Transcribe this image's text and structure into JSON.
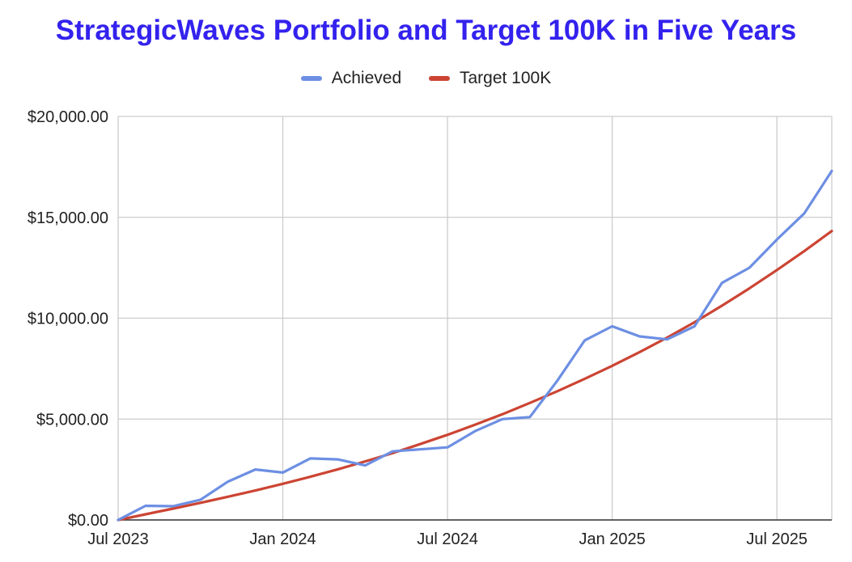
{
  "chart_data": {
    "type": "line",
    "title": "StrategicWaves Portfolio and Target 100K in Five Years",
    "xlabel": "",
    "ylabel": "",
    "ylim": [
      0,
      20000
    ],
    "xlim": [
      0,
      26
    ],
    "x_ticks": [
      {
        "x": 0,
        "label": "Jul 2023"
      },
      {
        "x": 6,
        "label": "Jan 2024"
      },
      {
        "x": 12,
        "label": "Jul 2024"
      },
      {
        "x": 18,
        "label": "Jan 2025"
      },
      {
        "x": 24,
        "label": "Jul 2025"
      }
    ],
    "y_ticks": [
      {
        "y": 0,
        "label": "$0.00"
      },
      {
        "y": 5000,
        "label": "$5,000.00"
      },
      {
        "y": 10000,
        "label": "$10,000.00"
      },
      {
        "y": 15000,
        "label": "$15,000.00"
      },
      {
        "y": 20000,
        "label": "$20,000.00"
      }
    ],
    "legend_position": "top",
    "grid": true,
    "series": [
      {
        "name": "Achieved",
        "color": "#6d8fe3",
        "x": [
          0,
          1,
          2,
          3,
          4,
          5,
          6,
          7,
          8,
          9,
          10,
          11,
          12,
          13,
          14,
          15,
          16,
          17,
          18,
          19,
          20,
          21,
          22,
          23,
          24,
          25,
          26
        ],
        "values": [
          0,
          700,
          680,
          1000,
          1900,
          2500,
          2350,
          3050,
          3000,
          2700,
          3400,
          3500,
          3600,
          4400,
          5000,
          5100,
          6900,
          8900,
          9600,
          9100,
          8950,
          9600,
          11750,
          12500,
          13900,
          15200,
          17300
        ]
      },
      {
        "name": "Target 100K",
        "color": "#cc4433",
        "x": [
          0,
          1,
          2,
          3,
          4,
          5,
          6,
          7,
          8,
          9,
          10,
          11,
          12,
          13,
          14,
          15,
          16,
          17,
          18,
          19,
          20,
          21,
          22,
          23,
          24,
          25,
          26
        ],
        "values": [
          0,
          280,
          560,
          850,
          1150,
          1460,
          1790,
          2140,
          2510,
          2900,
          3310,
          3760,
          4220,
          4720,
          5240,
          5800,
          6380,
          7000,
          7640,
          8320,
          9040,
          9800,
          10620,
          11480,
          12390,
          13330,
          14320
        ]
      }
    ]
  }
}
